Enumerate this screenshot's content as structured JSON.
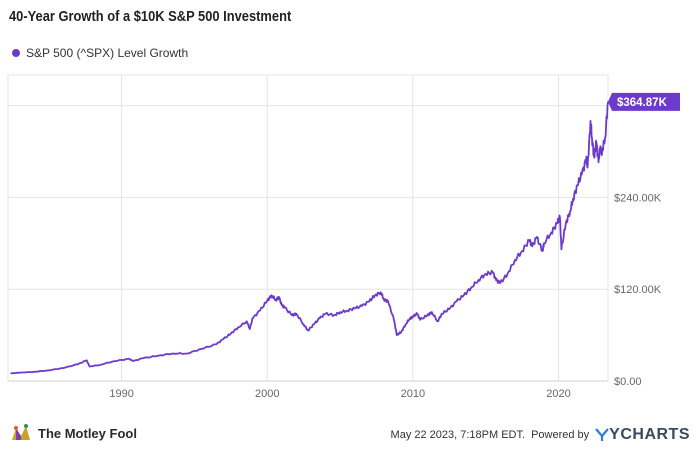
{
  "header": {
    "title": "40-Year Growth of a $10K S&P 500 Investment"
  },
  "footer": {
    "brand": "The Motley Fool",
    "timestamp": "May 22 2023, 7:18PM EDT.",
    "powered_by": "Powered by",
    "provider": "YCHARTS"
  },
  "colors": {
    "series": "#6c3bc9",
    "grid": "#e4e4e4",
    "axis_text": "#666666"
  },
  "chart_data": {
    "type": "line",
    "title": "40-Year Growth of a $10K S&P 500 Investment",
    "xlim": [
      1982.2,
      2023.4
    ],
    "ylim": [
      0,
      400
    ],
    "x_ticks": [
      1990,
      2000,
      2010,
      2020
    ],
    "x_tick_labels": [
      "1990",
      "2000",
      "2010",
      "2020"
    ],
    "y_ticks": [
      0,
      120,
      240
    ],
    "y_tick_labels": [
      "$0.00",
      "$120.00K",
      "$240.00K"
    ],
    "y_unit": "thousands USD",
    "grid": true,
    "legend_position": "top-left",
    "last_value_label": "$364.87K",
    "series": [
      {
        "name": "S&P 500 (^SPX) Level Growth",
        "x": [
          1982.4,
          1983.0,
          1984.0,
          1985.0,
          1986.0,
          1987.0,
          1987.6,
          1987.8,
          1988.5,
          1989.5,
          1990.5,
          1990.8,
          1991.5,
          1992.5,
          1993.5,
          1994.5,
          1995.5,
          1996.5,
          1997.0,
          1997.5,
          1998.0,
          1998.6,
          1998.8,
          1999.0,
          1999.5,
          2000.0,
          2000.3,
          2000.6,
          2000.8,
          2001.0,
          2001.2,
          2001.7,
          2002.0,
          2002.5,
          2002.8,
          2003.2,
          2003.6,
          2004.0,
          2004.6,
          2005.0,
          2005.5,
          2006.0,
          2006.5,
          2007.0,
          2007.4,
          2007.8,
          2008.0,
          2008.3,
          2008.7,
          2008.9,
          2009.2,
          2009.5,
          2009.8,
          2010.0,
          2010.3,
          2010.5,
          2011.0,
          2011.3,
          2011.7,
          2012.0,
          2012.5,
          2013.0,
          2013.5,
          2014.0,
          2014.5,
          2015.0,
          2015.5,
          2015.7,
          2016.0,
          2016.5,
          2017.0,
          2017.5,
          2018.0,
          2018.2,
          2018.5,
          2018.9,
          2019.0,
          2019.5,
          2019.9,
          2020.1,
          2020.2,
          2020.5,
          2020.8,
          2021.0,
          2021.3,
          2021.6,
          2021.9,
          2022.0,
          2022.2,
          2022.3,
          2022.45,
          2022.6,
          2022.75,
          2022.85,
          2023.0,
          2023.2,
          2023.4
        ],
        "values": [
          10,
          11,
          12,
          14,
          17,
          22,
          27,
          19,
          21,
          26,
          29,
          26,
          30,
          33,
          36,
          36,
          42,
          48,
          55,
          62,
          70,
          78,
          68,
          82,
          92,
          105,
          112,
          106,
          110,
          99,
          96,
          86,
          88,
          74,
          66,
          74,
          82,
          88,
          86,
          90,
          92,
          95,
          98,
          104,
          112,
          116,
          107,
          104,
          80,
          60,
          64,
          74,
          82,
          84,
          88,
          80,
          86,
          90,
          78,
          88,
          94,
          104,
          112,
          122,
          132,
          140,
          142,
          132,
          128,
          140,
          158,
          170,
          184,
          176,
          188,
          170,
          180,
          194,
          206,
          214,
          172,
          206,
          222,
          238,
          256,
          270,
          290,
          280,
          340,
          318,
          292,
          312,
          286,
          304,
          300,
          318,
          364.87
        ]
      }
    ]
  }
}
